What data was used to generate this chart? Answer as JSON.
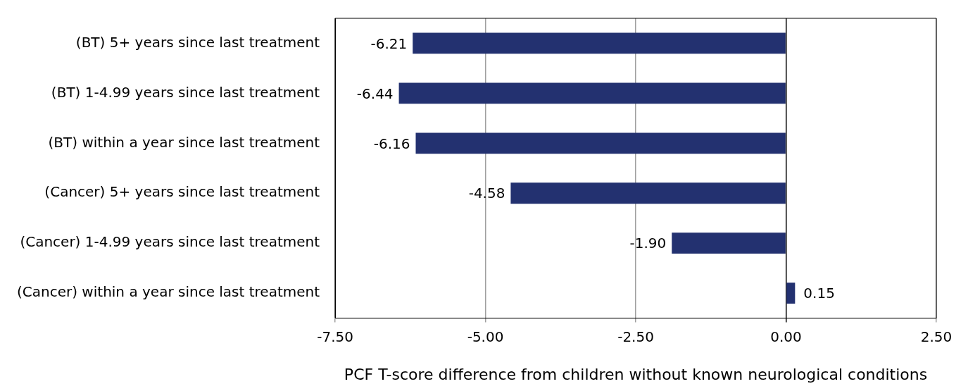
{
  "chart_data": {
    "type": "bar",
    "orientation": "horizontal",
    "xlabel": "PCF T-score difference from children without known neurological conditions",
    "categories": [
      "(BT) 5+ years since last treatment",
      "(BT) 1-4.99 years since last treatment",
      "(BT) within a year since last treatment",
      "(Cancer) 5+ years since last treatment",
      "(Cancer) 1-4.99 years since last treatment",
      "(Cancer) within a year since last treatment"
    ],
    "values": [
      -6.21,
      -6.44,
      -6.16,
      -4.58,
      -1.9,
      0.15
    ],
    "value_labels": [
      "-6.21",
      "-6.44",
      "-6.16",
      "-4.58",
      "-1.90",
      "0.15"
    ],
    "color": "#233170",
    "xlim": [
      -7.5,
      2.5
    ],
    "xticks": [
      {
        "value": -7.5,
        "label": "-7.50"
      },
      {
        "value": -5,
        "label": "-5.00"
      },
      {
        "value": -2.5,
        "label": "-2.50"
      },
      {
        "value": 0,
        "label": "0.00"
      },
      {
        "value": 2.5,
        "label": "2.50"
      }
    ],
    "grid": "x",
    "legend": false
  }
}
